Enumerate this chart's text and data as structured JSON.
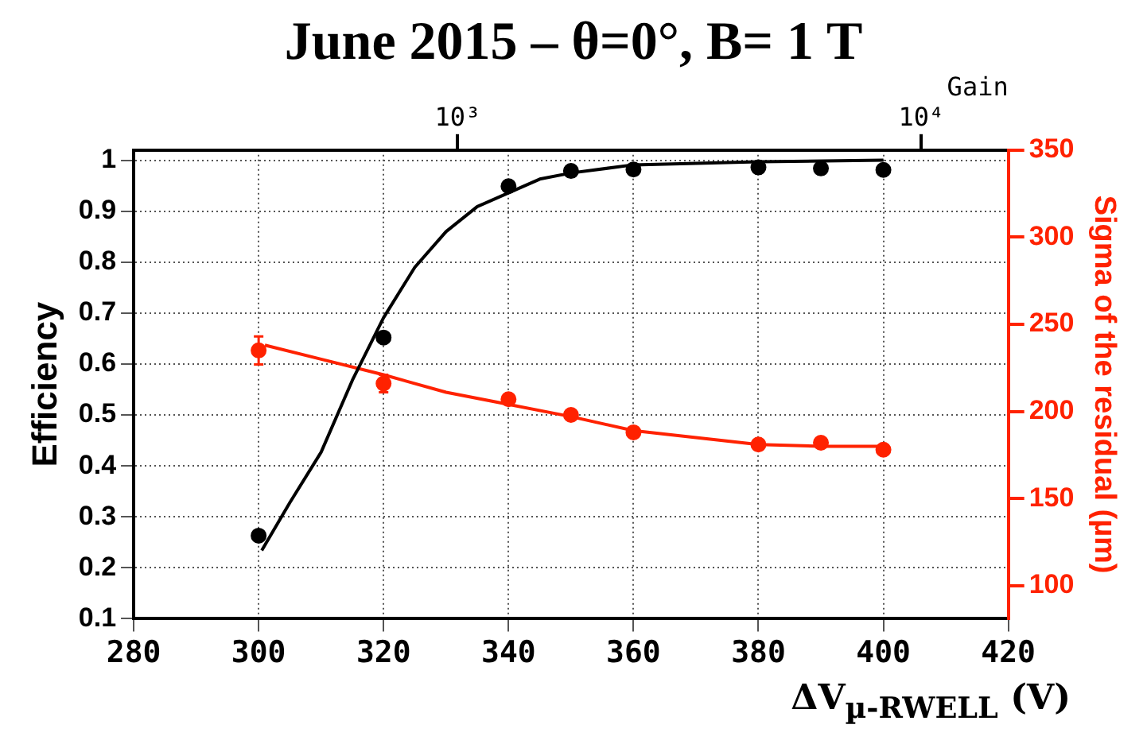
{
  "chart_data": {
    "type": "scatter",
    "title": "June 2015 – θ=0°, B= 1 T",
    "xlabel": "ΔV$_{µ-RWELL}$ (V)",
    "ylabel": "Efficiency",
    "y2label": "Sigma of the residual (µm)",
    "x2label": "Gain",
    "series": [
      {
        "color": "#000000",
        "x": [
          300,
          320,
          340,
          350,
          360,
          380,
          390,
          400
        ],
        "values": [
          0.263,
          0.652,
          0.949,
          0.979,
          0.982,
          0.986,
          0.984,
          0.981
        ]
      },
      {
        "type": "line",
        "color": "#000000",
        "marker": "none",
        "x": [
          300.5,
          305,
          310,
          315,
          320,
          325,
          330,
          335,
          340,
          345,
          350,
          360,
          380,
          400
        ],
        "values": [
          0.234,
          0.328,
          0.427,
          0.568,
          0.691,
          0.79,
          0.86,
          0.909,
          0.936,
          0.963,
          0.975,
          0.991,
          0.997,
          1.0
        ]
      },
      {
        "color": "#ff2200",
        "axis": "y2",
        "x": [
          300,
          320,
          340,
          350,
          360,
          380,
          390,
          400
        ],
        "values": [
          235,
          216,
          207,
          198,
          188,
          181,
          182,
          178
        ],
        "errors": [
          8,
          5,
          null,
          null,
          null,
          null,
          null,
          null
        ]
      },
      {
        "type": "line",
        "color": "#ff2200",
        "axis": "y2",
        "marker": "none",
        "x": [
          301,
          310,
          320,
          330,
          340,
          350,
          360,
          370,
          380,
          390,
          400
        ],
        "values": [
          238,
          230,
          221,
          211,
          204,
          197,
          189,
          185,
          181,
          180,
          180
        ]
      }
    ],
    "xlim": [
      280,
      420
    ],
    "xticks": [
      280,
      300,
      320,
      340,
      360,
      380,
      400,
      420
    ],
    "ylim": [
      0.1,
      1.02
    ],
    "yticks": [
      0.1,
      0.2,
      0.3,
      0.4,
      0.5,
      0.6,
      0.7,
      0.8,
      0.9,
      1
    ],
    "y2lim": [
      81,
      350
    ],
    "y2ticks": [
      100,
      150,
      200,
      250,
      300,
      350
    ],
    "x2lim": [
      200,
      15400
    ],
    "x2ticks": [
      {
        "value": 1000,
        "label": "10³"
      },
      {
        "value": 10000,
        "label": "10⁴"
      }
    ],
    "log": "x2",
    "grid": true,
    "legend": false,
    "marker": "circle",
    "line_style": "solid"
  }
}
